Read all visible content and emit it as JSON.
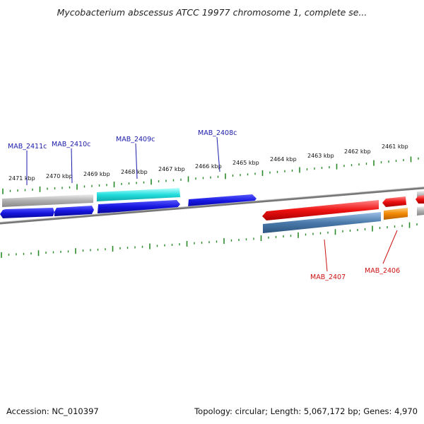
{
  "title": "Mycobacterium abscessus ATCC 19977 chromosome 1, complete se...",
  "ticks": [
    "2471 kbp",
    "2470 kbp",
    "2469 kbp",
    "2468 kbp",
    "2467 kbp",
    "2466 kbp",
    "2465 kbp",
    "2464 kbp",
    "2463 kbp",
    "2462 kbp",
    "2461 kbp"
  ],
  "gene_labels": {
    "mab_2411c": "MAB_2411c",
    "mab_2410c": "MAB_2410c",
    "mab_2409c": "MAB_2409c",
    "mab_2408c": "MAB_2408c",
    "mab_2407": "MAB_2407",
    "mab_2406": "MAB_2406"
  },
  "footer": {
    "accession": "Accession: NC_010397",
    "summary": "Topology: circular; Length: 5,067,172 bp; Genes: 4,970"
  },
  "colors": {
    "minus_strand_label": "#1a1aaa",
    "plus_strand_label": "#cc1111",
    "ticks": "#2a8a2a",
    "backbone": "#808080",
    "gene_blue": "#1515e0",
    "gene_cyan": "#22dddd",
    "gene_red": "#ee1111",
    "gene_steelblue": "#4a7aaa",
    "gene_orange": "#f08800",
    "gene_grey": "#b0b0b0"
  }
}
